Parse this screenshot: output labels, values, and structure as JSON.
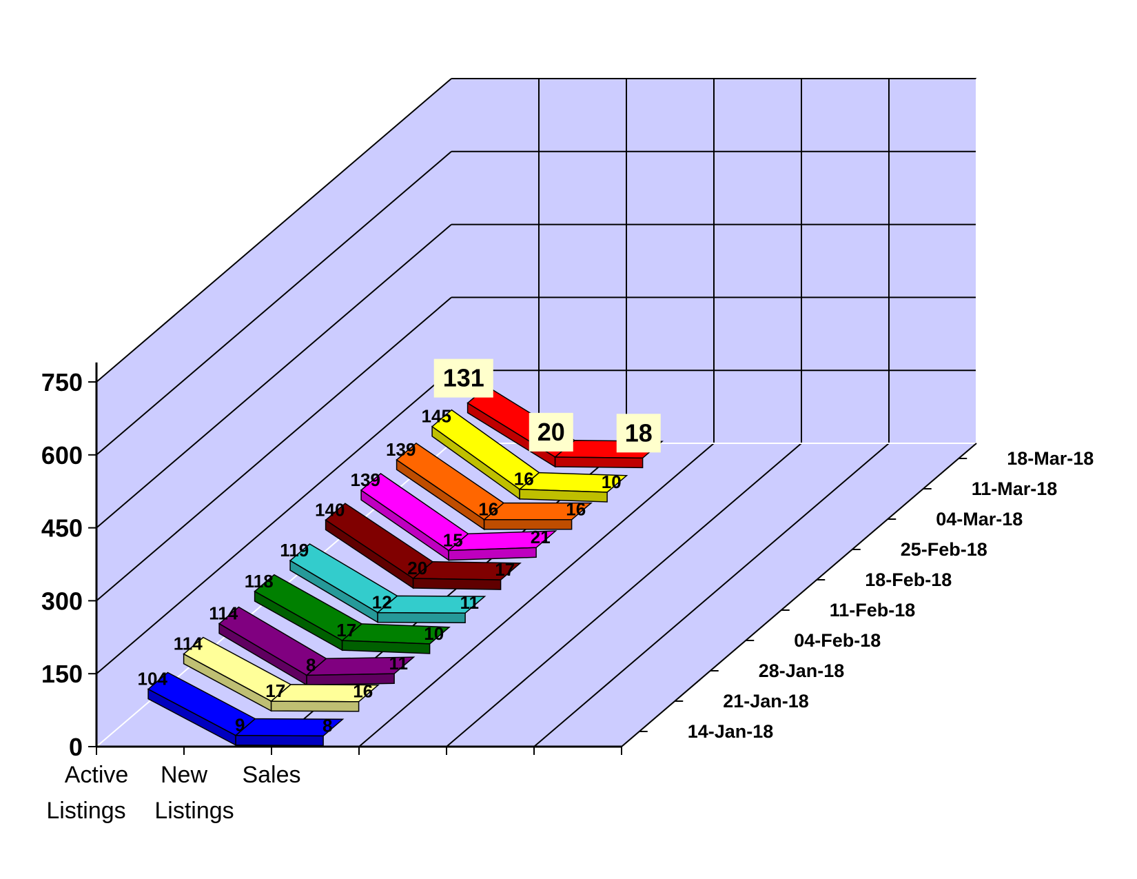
{
  "chart_data": {
    "type": "line",
    "subtype": "3d-ribbon",
    "categories": [
      "Active Listings",
      "New Listings",
      "Sales"
    ],
    "y_ticks": [
      "0",
      "150",
      "300",
      "450",
      "600",
      "750"
    ],
    "ylim": [
      0,
      750
    ],
    "grid": true,
    "series": [
      {
        "name": "14-Jan-18",
        "values": [
          104,
          9,
          8
        ],
        "color": "#0000ff"
      },
      {
        "name": "21-Jan-18",
        "values": [
          114,
          17,
          16
        ],
        "color": "#ffff99"
      },
      {
        "name": "28-Jan-18",
        "values": [
          114,
          8,
          11
        ],
        "color": "#800080"
      },
      {
        "name": "04-Feb-18",
        "values": [
          118,
          17,
          10
        ],
        "color": "#008000"
      },
      {
        "name": "11-Feb-18",
        "values": [
          119,
          12,
          11
        ],
        "color": "#33cccc"
      },
      {
        "name": "18-Feb-18",
        "values": [
          140,
          20,
          17
        ],
        "color": "#800000"
      },
      {
        "name": "25-Feb-18",
        "values": [
          139,
          15,
          21
        ],
        "color": "#ff00ff"
      },
      {
        "name": "04-Mar-18",
        "values": [
          139,
          16,
          16
        ],
        "color": "#ff6600"
      },
      {
        "name": "11-Mar-18",
        "values": [
          145,
          16,
          10
        ],
        "color": "#ffff00"
      },
      {
        "name": "18-Mar-18",
        "values": [
          131,
          20,
          18
        ],
        "color": "#ff0000"
      }
    ],
    "highlighted_series": "18-Mar-18",
    "wall_color": "#ccccff",
    "label_box_color": "#ffffcc"
  }
}
